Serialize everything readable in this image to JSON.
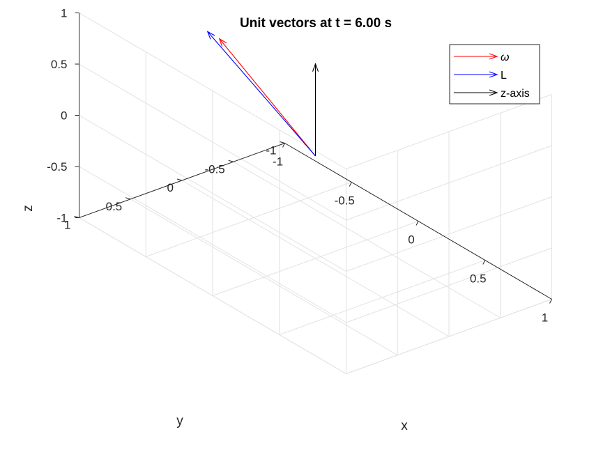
{
  "chart_data": {
    "type": "quiver3d",
    "title": "Unit vectors at t = 6.00 s",
    "xlabel": "x",
    "ylabel": "y",
    "zlabel": "z",
    "xlim": [
      -1,
      1
    ],
    "ylim": [
      -1,
      1
    ],
    "zlim": [
      -1,
      1
    ],
    "x_ticks": [
      "-1",
      "-0.5",
      "0",
      "0.5",
      "1"
    ],
    "y_ticks": [
      "-1",
      "-0.5",
      "0",
      "0.5",
      "1"
    ],
    "z_ticks": [
      "-1",
      "-0.5",
      "0",
      "0.5",
      "1"
    ],
    "grid": true,
    "legend_position": "top-right",
    "series": [
      {
        "name": "ω",
        "color": "#ff0000",
        "origin": [
          0,
          0,
          0
        ],
        "vector": [
          -0.45,
          0.35,
          0.93
        ]
      },
      {
        "name": "L",
        "color": "#0000ff",
        "origin": [
          0,
          0,
          0
        ],
        "vector": [
          -0.5,
          0.4,
          0.98
        ]
      },
      {
        "name": "z-axis",
        "color": "#000000",
        "origin": [
          0,
          0,
          0
        ],
        "vector": [
          0,
          0,
          0.9
        ]
      }
    ]
  }
}
